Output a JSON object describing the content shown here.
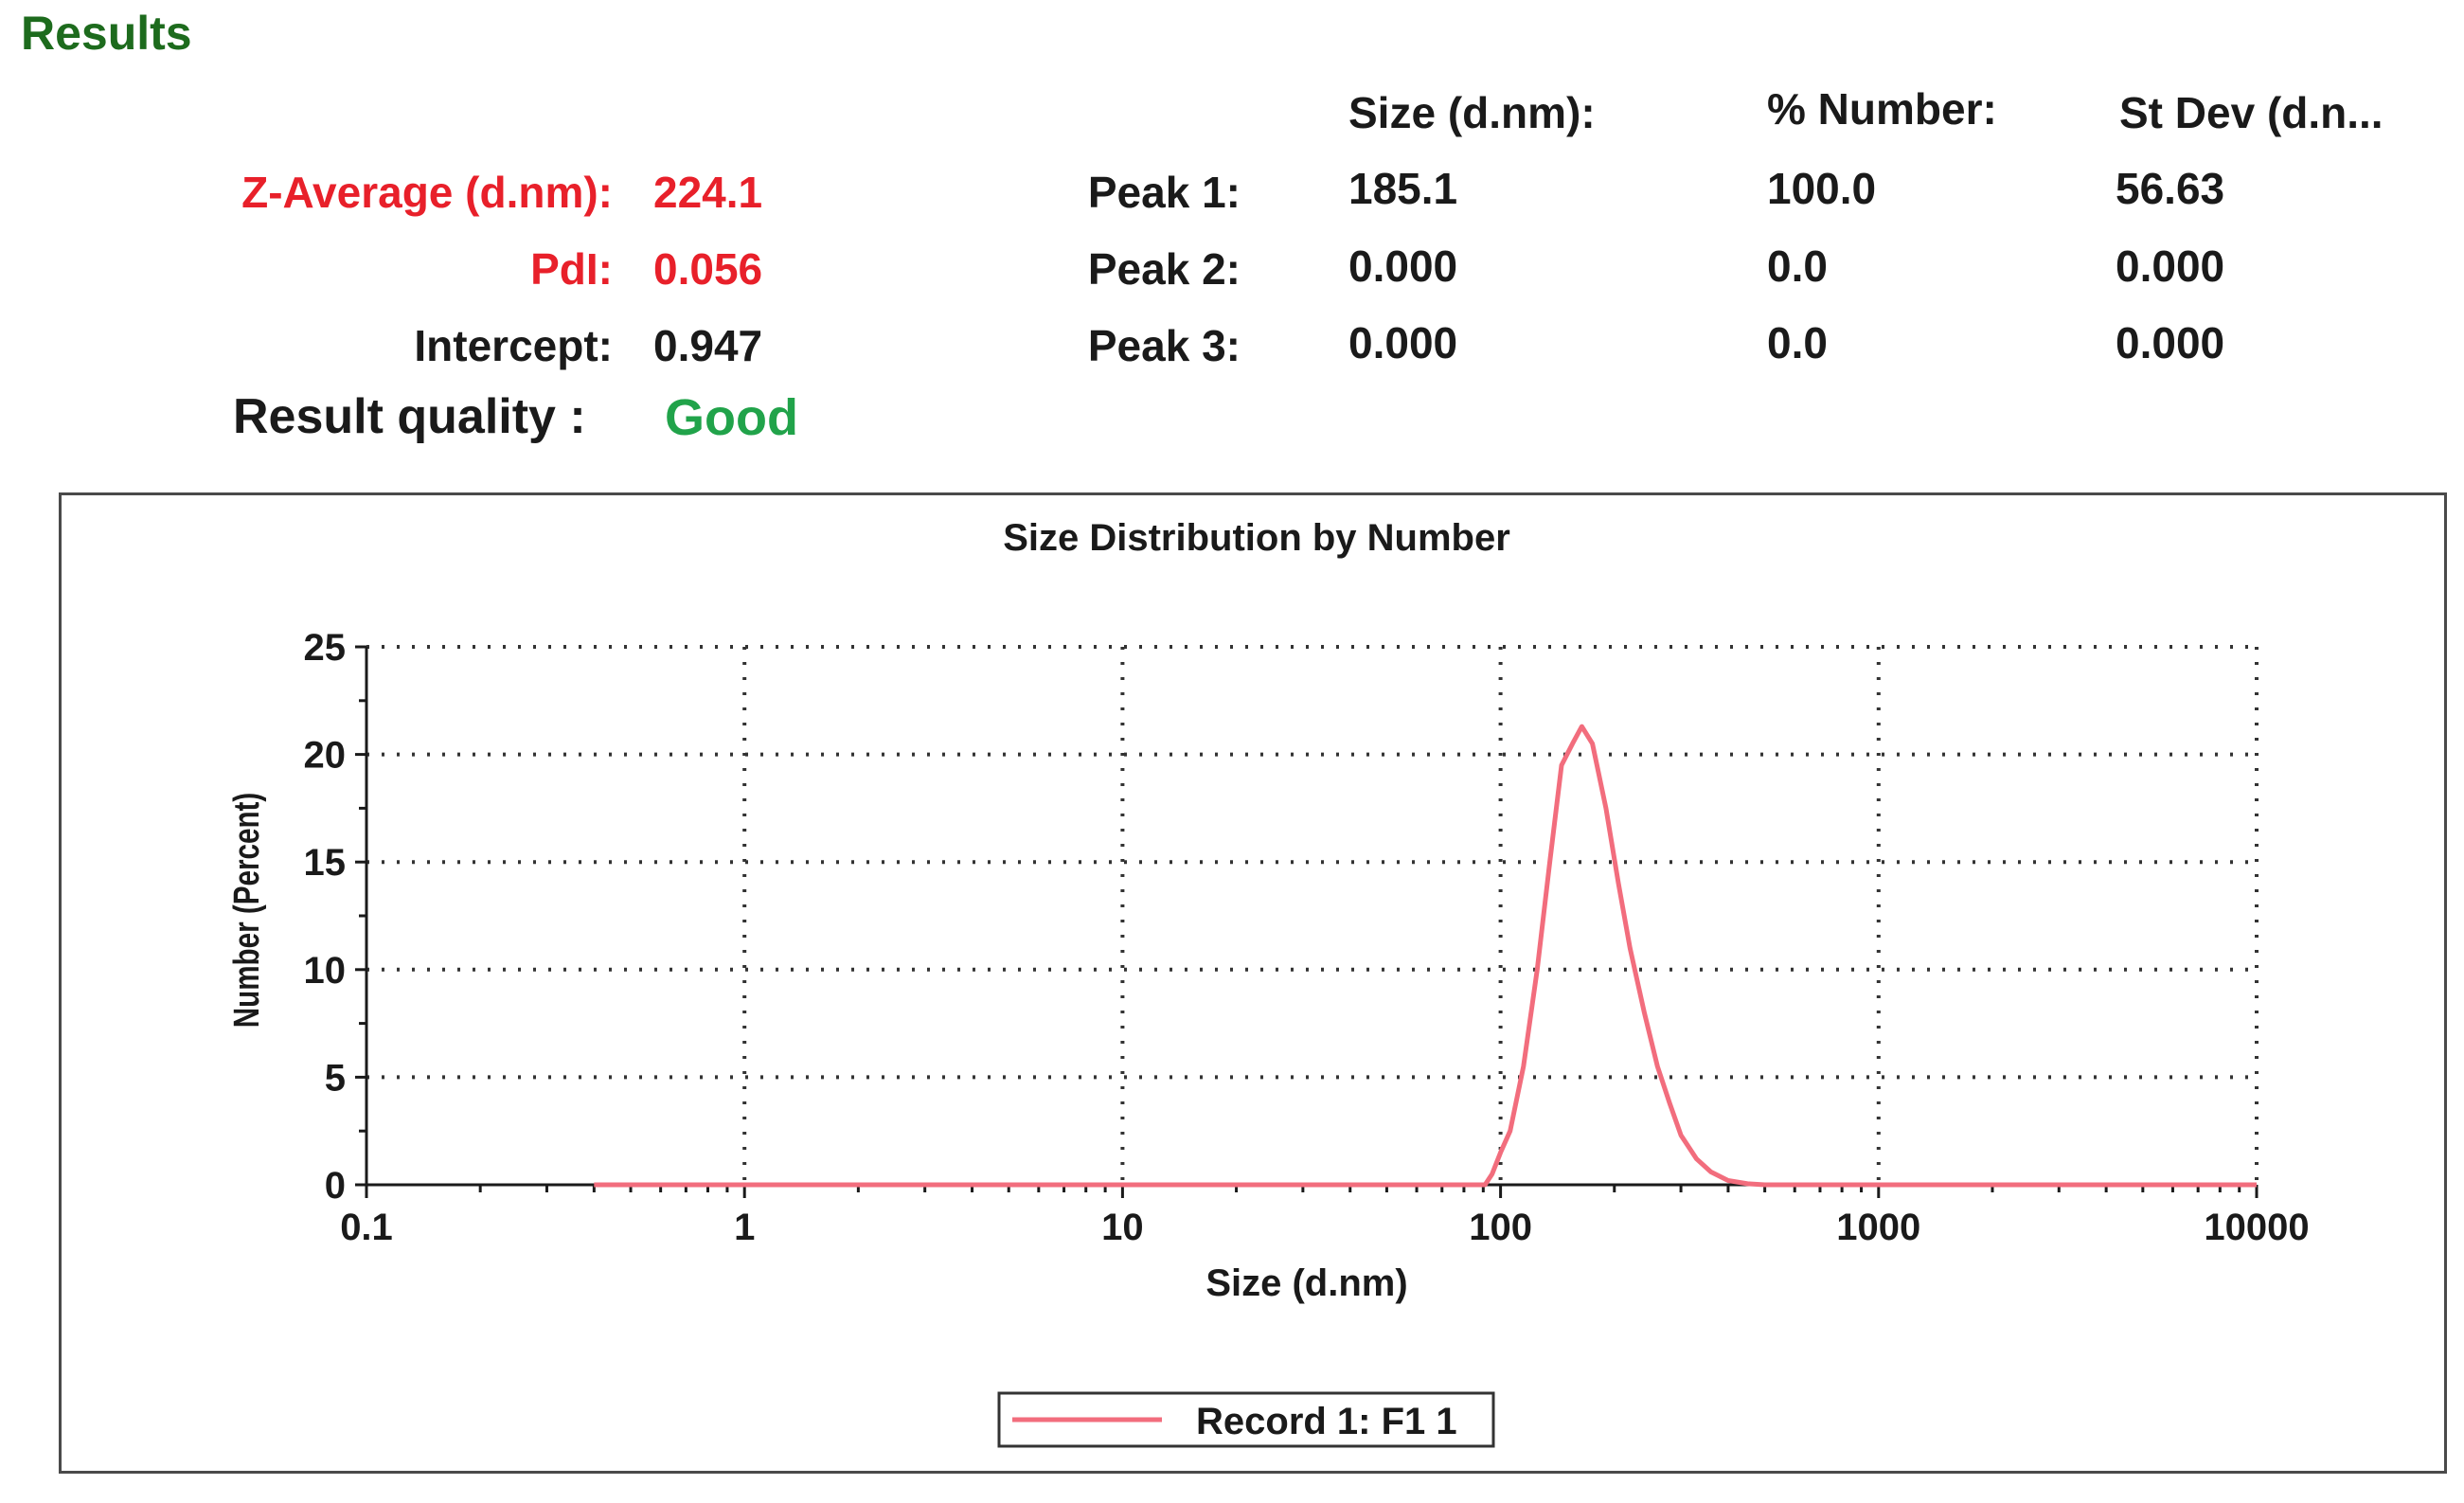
{
  "results_title": "Results",
  "summary": {
    "z_average": {
      "label": "Z-Average (d.nm):",
      "value": "224.1"
    },
    "pdi": {
      "label": "PdI:",
      "value": "0.056"
    },
    "intercept": {
      "label": "Intercept:",
      "value": "0.947"
    },
    "result_quality": {
      "label": "Result quality :",
      "value": "Good"
    }
  },
  "peaks_table": {
    "headers": [
      "Size (d.nm):",
      "% Number:",
      "St Dev (d.n..."
    ],
    "rows": [
      {
        "label": "Peak 1:",
        "size": "185.1",
        "number": "100.0",
        "stdev": "56.63"
      },
      {
        "label": "Peak 2:",
        "size": "0.000",
        "number": "0.0",
        "stdev": "0.000"
      },
      {
        "label": "Peak 3:",
        "size": "0.000",
        "number": "0.0",
        "stdev": "0.000"
      }
    ]
  },
  "colors": {
    "results_title": "#1d6b1d",
    "highlight_red": "#e8202a",
    "good_green": "#21a34a",
    "series_line": "#f26d7d"
  },
  "chart_data": {
    "type": "line",
    "title": "Size Distribution by Number",
    "xlabel": "Size (d.nm)",
    "ylabel": "Number (Percent)",
    "xscale": "log",
    "xlim": [
      0.1,
      10000
    ],
    "ylim": [
      0,
      25
    ],
    "xticks": [
      "0.1",
      "1",
      "10",
      "100",
      "1000",
      "10000"
    ],
    "yticks": [
      "0",
      "5",
      "10",
      "15",
      "20",
      "25"
    ],
    "grid": true,
    "legend_position": "bottom-center",
    "series": [
      {
        "name": "Record 1: F1 1",
        "color": "#f26d7d",
        "x": [
          0.4,
          1,
          10,
          50,
          91,
          95,
          100,
          106,
          115,
          125,
          135,
          145,
          155,
          164,
          175,
          190,
          205,
          220,
          240,
          260,
          280,
          300,
          330,
          360,
          400,
          450,
          500,
          1000,
          5000,
          10000
        ],
        "y": [
          0,
          0,
          0,
          0,
          0,
          0.5,
          1.5,
          2.5,
          5.5,
          10,
          15,
          19.5,
          20.5,
          21.3,
          20.5,
          17.5,
          14,
          11,
          8,
          5.5,
          3.8,
          2.3,
          1.2,
          0.6,
          0.2,
          0.05,
          0,
          0,
          0,
          0
        ]
      }
    ]
  }
}
